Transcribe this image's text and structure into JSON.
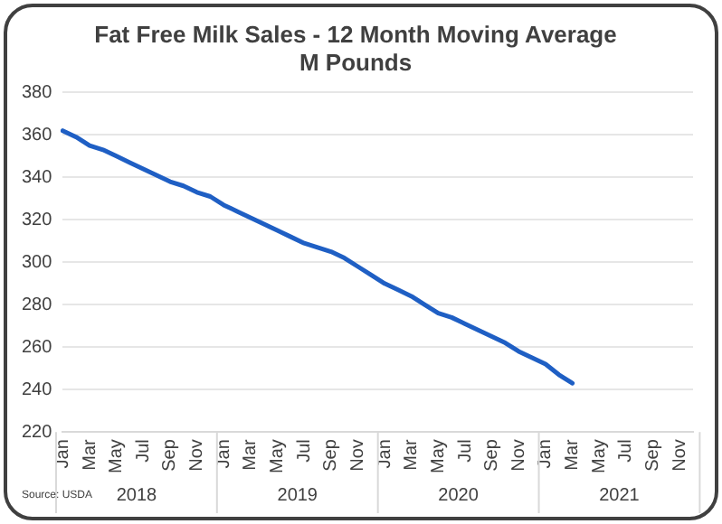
{
  "chart_data": {
    "type": "line",
    "title": "Fat Free Milk Sales - 12 Month Moving Average",
    "subtitle": "M Pounds",
    "categories": [
      "Jan",
      null,
      "Mar",
      null,
      "May",
      null,
      "Jul",
      null,
      "Sep",
      null,
      "Nov",
      null,
      "Jan",
      null,
      "Mar",
      null,
      "May",
      null,
      "Jul",
      null,
      "Sep",
      null,
      "Nov",
      null,
      "Jan",
      null,
      "Mar",
      null,
      "May",
      null,
      "Jul",
      null,
      "Sep",
      null,
      "Nov",
      null,
      "Jan",
      null,
      "Mar",
      null,
      "May",
      null,
      "Jul",
      null,
      "Sep",
      null,
      "Nov",
      null
    ],
    "series": [
      {
        "color": "#1f5fc4",
        "values": [
          362,
          359,
          355,
          353,
          350,
          347,
          344,
          341,
          338,
          336,
          333,
          331,
          327,
          324,
          321,
          318,
          315,
          312,
          309,
          307,
          305,
          302,
          298,
          294,
          290,
          287,
          284,
          280,
          276,
          274,
          271,
          268,
          265,
          262,
          258,
          255,
          252,
          247,
          243,
          null,
          null,
          null,
          null,
          null,
          null,
          null,
          null,
          null
        ]
      }
    ],
    "ylim": [
      220,
      380
    ],
    "yticks": [
      220,
      240,
      260,
      280,
      300,
      320,
      340,
      360,
      380
    ],
    "grid": "y",
    "legend": false,
    "marker": "none",
    "line_style": "solid",
    "annotations": [
      "2018",
      "2019",
      "2020",
      "2021",
      "Source: USDA"
    ]
  }
}
